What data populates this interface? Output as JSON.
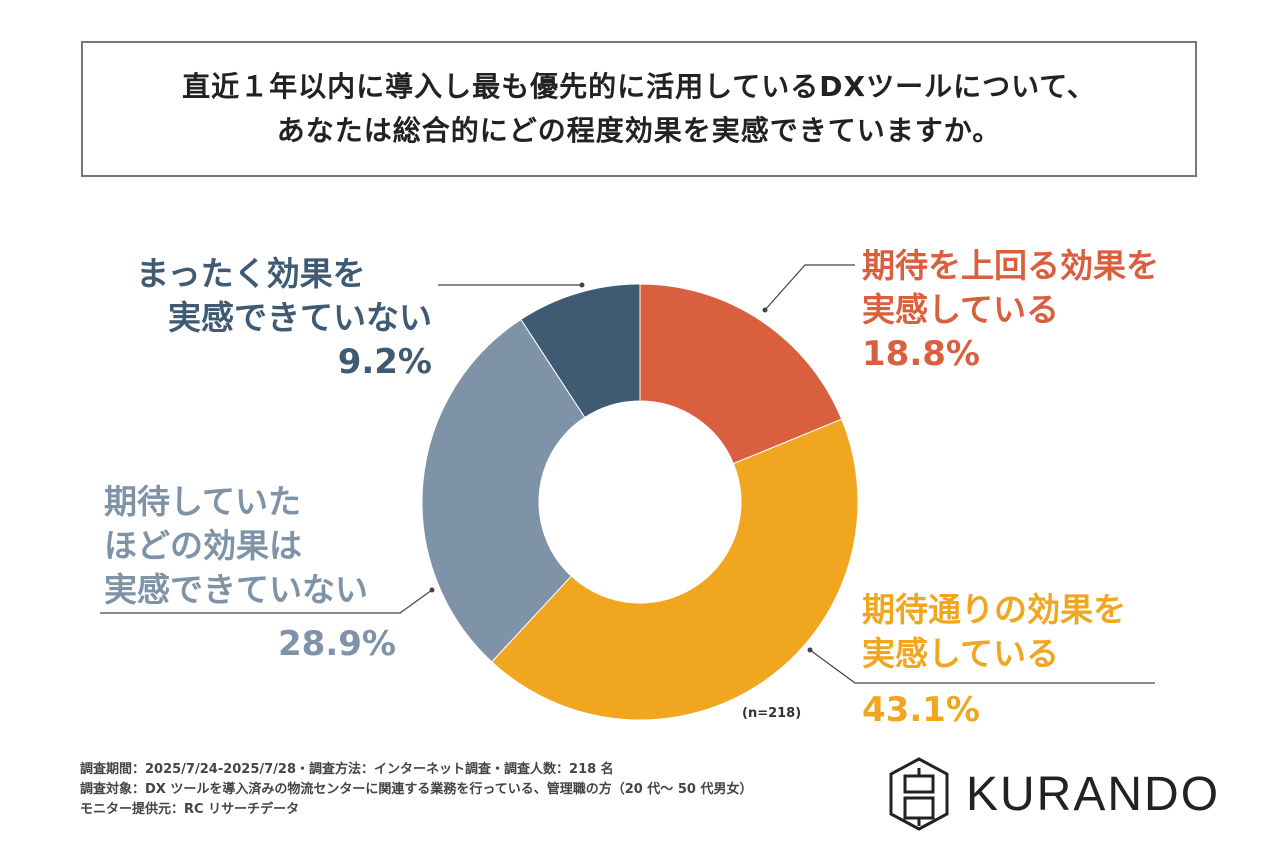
{
  "title": [
    "直近１年以内に導入し最も優先的に活用しているDXツールについて、",
    "あなたは総合的にどの程度効果を実感できていますか。"
  ],
  "chart_data": {
    "type": "donut",
    "slices": [
      {
        "label": "期待を上回る効果を実感している",
        "lines": [
          "期待を上回る効果を",
          "実感している"
        ],
        "value": 18.8,
        "pct": "18.8%",
        "color": "#d95f3e"
      },
      {
        "label": "期待通りの効果を実感している",
        "lines": [
          "期待通りの効果を",
          "実感している"
        ],
        "value": 43.1,
        "pct": "43.1%",
        "color": "#f0a61f"
      },
      {
        "label": "期待していたほどの効果は実感できていない",
        "lines": [
          "期待していた",
          "ほどの効果は",
          "実感できていない"
        ],
        "value": 28.9,
        "pct": "28.9%",
        "color": "#7f93a8"
      },
      {
        "label": "まったく効果を実感できていない",
        "lines": [
          "まったく効果を",
          "実感できていない"
        ],
        "value": 9.2,
        "pct": "9.2%",
        "color": "#3f5a73"
      }
    ],
    "start": "top",
    "direction": "clockwise"
  },
  "sample": "(n=218)",
  "notes": [
    "調査期間：2025/7/24-2025/7/28・調査方法：インターネット調査・調査人数：218 名",
    "調査対象：DX ツールを導入済みの物流センターに関連する業務を行っている、管理職の方（20 代～ 50 代男女）",
    "モニター提供元：RC リサーチデータ"
  ],
  "logo": "KURANDO"
}
